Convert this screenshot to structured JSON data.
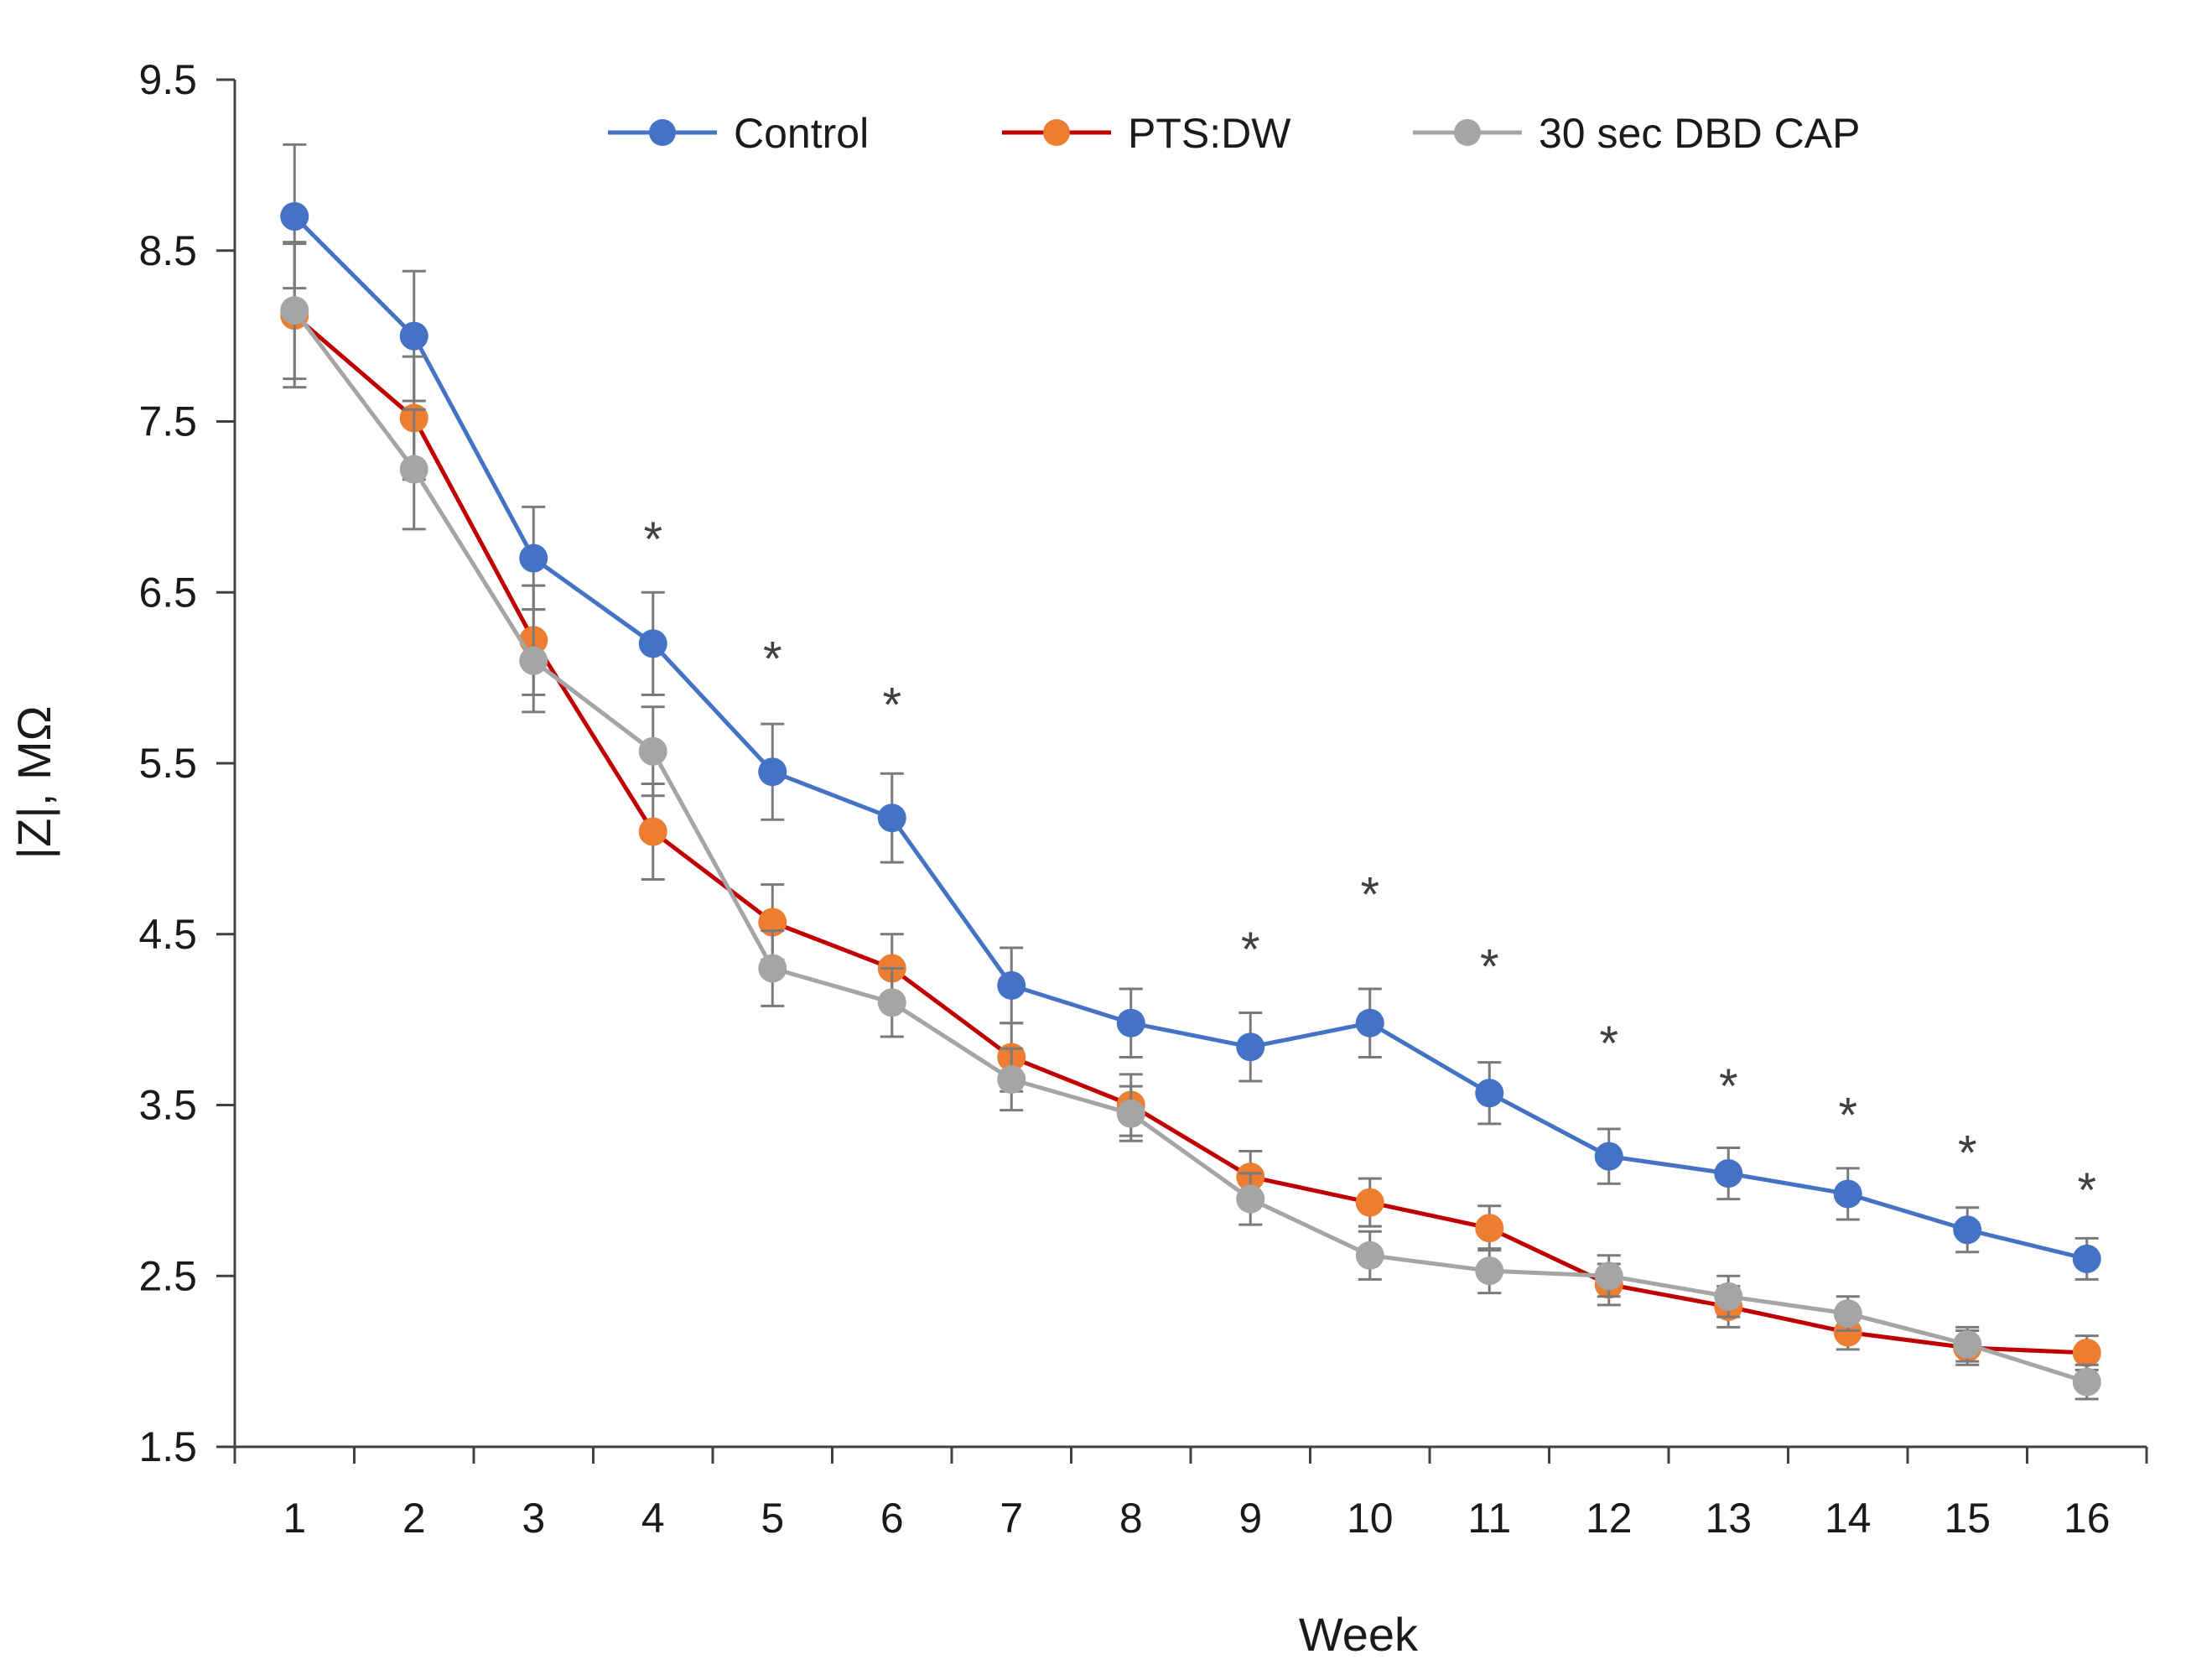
{
  "chart_data": {
    "type": "line",
    "title": "",
    "xlabel": "Week",
    "ylabel": "|Z|, MΩ",
    "ylim": [
      1.5,
      9.5
    ],
    "yticks": [
      "1.5",
      "2.5",
      "3.5",
      "4.5",
      "5.5",
      "6.5",
      "7.5",
      "8.5",
      "9.5"
    ],
    "x": [
      1,
      2,
      3,
      4,
      5,
      6,
      7,
      8,
      9,
      10,
      11,
      12,
      13,
      14,
      15,
      16
    ],
    "legend_position": "top-center",
    "grid": false,
    "series": [
      {
        "name": "Control",
        "color": "#4472C4",
        "values": [
          8.7,
          8.0,
          6.7,
          6.2,
          5.45,
          5.18,
          4.2,
          3.98,
          3.84,
          3.98,
          3.57,
          3.2,
          3.1,
          2.98,
          2.77,
          2.6
        ],
        "errors": [
          0.42,
          0.38,
          0.3,
          0.3,
          0.28,
          0.26,
          0.22,
          0.2,
          0.2,
          0.2,
          0.18,
          0.16,
          0.15,
          0.15,
          0.13,
          0.12
        ]
      },
      {
        "name": "PTS:DW",
        "color": "#ED7D31",
        "line_color": "#C00000",
        "values": [
          8.12,
          7.52,
          6.22,
          5.1,
          4.57,
          4.3,
          3.78,
          3.5,
          3.08,
          2.93,
          2.78,
          2.45,
          2.32,
          2.17,
          2.08,
          2.05
        ],
        "errors": [
          0.42,
          0.36,
          0.32,
          0.28,
          0.22,
          0.2,
          0.2,
          0.18,
          0.15,
          0.14,
          0.13,
          0.12,
          0.12,
          0.1,
          0.1,
          0.1
        ]
      },
      {
        "name": "30 sec DBD CAP",
        "color": "#A5A5A5",
        "values": [
          8.15,
          7.22,
          6.1,
          5.57,
          4.3,
          4.1,
          3.65,
          3.45,
          2.95,
          2.62,
          2.53,
          2.5,
          2.38,
          2.28,
          2.1,
          1.88
        ],
        "errors": [
          0.4,
          0.35,
          0.3,
          0.26,
          0.22,
          0.2,
          0.18,
          0.16,
          0.15,
          0.14,
          0.13,
          0.12,
          0.12,
          0.1,
          0.1,
          0.1
        ]
      }
    ],
    "annotations": [
      {
        "x": 4,
        "y": 6.85,
        "text": "*"
      },
      {
        "x": 5,
        "y": 6.15,
        "text": "*"
      },
      {
        "x": 6,
        "y": 5.88,
        "text": "*"
      },
      {
        "x": 9,
        "y": 4.45,
        "text": "*"
      },
      {
        "x": 10,
        "y": 4.77,
        "text": "*"
      },
      {
        "x": 11,
        "y": 4.35,
        "text": "*"
      },
      {
        "x": 12,
        "y": 3.9,
        "text": "*"
      },
      {
        "x": 13,
        "y": 3.65,
        "text": "*"
      },
      {
        "x": 14,
        "y": 3.48,
        "text": "*"
      },
      {
        "x": 15,
        "y": 3.26,
        "text": "*"
      },
      {
        "x": 16,
        "y": 3.04,
        "text": "*"
      }
    ]
  }
}
